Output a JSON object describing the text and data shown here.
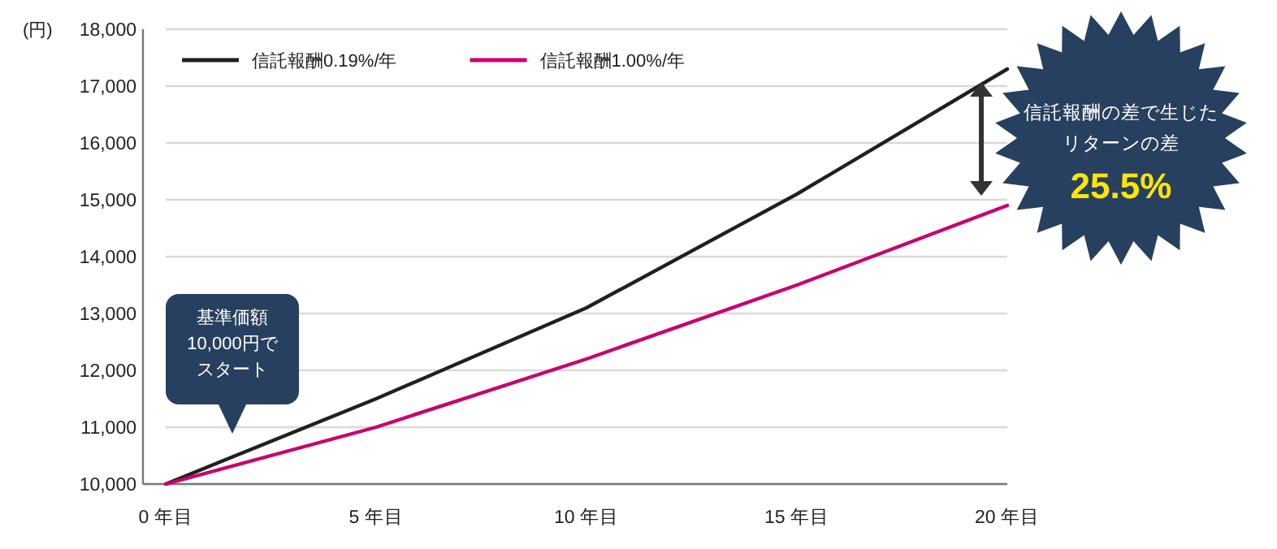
{
  "chart_data": {
    "type": "line",
    "ylabel": "(円)",
    "x": [
      0,
      5,
      10,
      15,
      20
    ],
    "series": [
      {
        "name": "信託報酬0.19%/年",
        "color": "#231f20",
        "values": [
          10000,
          11500,
          13100,
          15100,
          17300
        ]
      },
      {
        "name": "信託報酬1.00%/年",
        "color": "#c8006e",
        "values": [
          10000,
          11000,
          12200,
          13500,
          14900
        ]
      }
    ],
    "xlim": [
      0,
      20
    ],
    "xticks": [
      {
        "value": 0,
        "label": "0 年目"
      },
      {
        "value": 5,
        "label": "5 年目"
      },
      {
        "value": 10,
        "label": "10 年目"
      },
      {
        "value": 15,
        "label": "15 年目"
      },
      {
        "value": 20,
        "label": "20 年目"
      }
    ],
    "ylim": [
      10000,
      18000
    ],
    "yticks": [
      {
        "value": 10000,
        "label": "10,000"
      },
      {
        "value": 11000,
        "label": "11,000"
      },
      {
        "value": 12000,
        "label": "12,000"
      },
      {
        "value": 13000,
        "label": "13,000"
      },
      {
        "value": 14000,
        "label": "14,000"
      },
      {
        "value": 15000,
        "label": "15,000"
      },
      {
        "value": 16000,
        "label": "16,000"
      },
      {
        "value": 17000,
        "label": "17,000"
      },
      {
        "value": 18000,
        "label": "18,000"
      }
    ],
    "grid": "y",
    "legend": "top left",
    "marker": "none",
    "line_style": "solid",
    "annotations": [
      "基準価額",
      "10,000円で",
      "スタート",
      "信託報酬の差で生じた",
      "リターンの差",
      "25.5%"
    ]
  }
}
